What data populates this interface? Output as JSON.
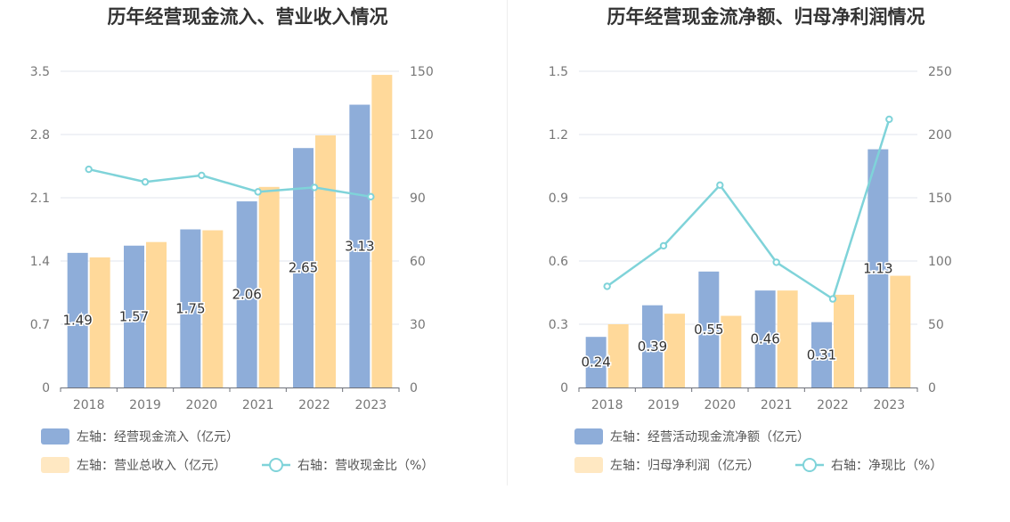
{
  "colors": {
    "bar_primary": "#8eadd9",
    "bar_secondary": "#ffd99a",
    "line": "#7fd3d9",
    "title": "#333333",
    "axis_text": "#777777",
    "legend_text": "#555555",
    "grid": "#e2e6ee",
    "divider": "#eeeeee"
  },
  "chart_data": [
    {
      "type": "bar",
      "title": "历年经营现金流入、营业收入情况",
      "categories": [
        "2018",
        "2019",
        "2020",
        "2021",
        "2022",
        "2023"
      ],
      "left_axis": {
        "min": 0,
        "max": 3.5,
        "ticks": [
          "0",
          "0.7",
          "1.4",
          "2.1",
          "2.8",
          "3.5"
        ]
      },
      "right_axis": {
        "min": 0,
        "max": 150,
        "ticks": [
          "0",
          "30",
          "60",
          "90",
          "120",
          "150"
        ]
      },
      "series": [
        {
          "name": "左轴：经营现金流入（亿元）",
          "kind": "bar",
          "axis": "left",
          "color": "#8eadd9",
          "values": [
            1.49,
            1.57,
            1.75,
            2.06,
            2.65,
            3.13
          ],
          "labels": [
            "1.49",
            "1.57",
            "1.75",
            "2.06",
            "2.65",
            "3.13"
          ]
        },
        {
          "name": "左轴：营业总收入（亿元）",
          "kind": "bar",
          "axis": "left",
          "color": "#ffd99a",
          "values": [
            1.44,
            1.61,
            1.74,
            2.22,
            2.79,
            3.46
          ]
        },
        {
          "name": "右轴：营收现金比（%）",
          "kind": "line",
          "axis": "right",
          "color": "#7fd3d9",
          "values": [
            103.5,
            97.5,
            100.6,
            92.8,
            94.9,
            90.5
          ]
        }
      ],
      "legend_placement": "bottom-left",
      "grid": true
    },
    {
      "type": "bar",
      "title": "历年经营现金流净额、归母净利润情况",
      "categories": [
        "2018",
        "2019",
        "2020",
        "2021",
        "2022",
        "2023"
      ],
      "left_axis": {
        "min": 0,
        "max": 1.5,
        "ticks": [
          "0",
          "0.3",
          "0.6",
          "0.9",
          "1.2",
          "1.5"
        ]
      },
      "right_axis": {
        "min": 0,
        "max": 250,
        "ticks": [
          "0",
          "50",
          "100",
          "150",
          "200",
          "250"
        ]
      },
      "series": [
        {
          "name": "左轴：经营活动现金流净额（亿元）",
          "kind": "bar",
          "axis": "left",
          "color": "#8eadd9",
          "values": [
            0.24,
            0.39,
            0.55,
            0.46,
            0.31,
            1.13
          ],
          "labels": [
            "0.24",
            "0.39",
            "0.55",
            "0.46",
            "0.31",
            "1.13"
          ]
        },
        {
          "name": "左轴：归母净利润（亿元）",
          "kind": "bar",
          "axis": "left",
          "color": "#ffd99a",
          "values": [
            0.3,
            0.35,
            0.34,
            0.46,
            0.44,
            0.53
          ]
        },
        {
          "name": "右轴：净现比（%）",
          "kind": "line",
          "axis": "right",
          "color": "#7fd3d9",
          "values": [
            80,
            112,
            160,
            99,
            70,
            212
          ]
        }
      ],
      "legend_placement": "bottom-left",
      "grid": true
    }
  ]
}
